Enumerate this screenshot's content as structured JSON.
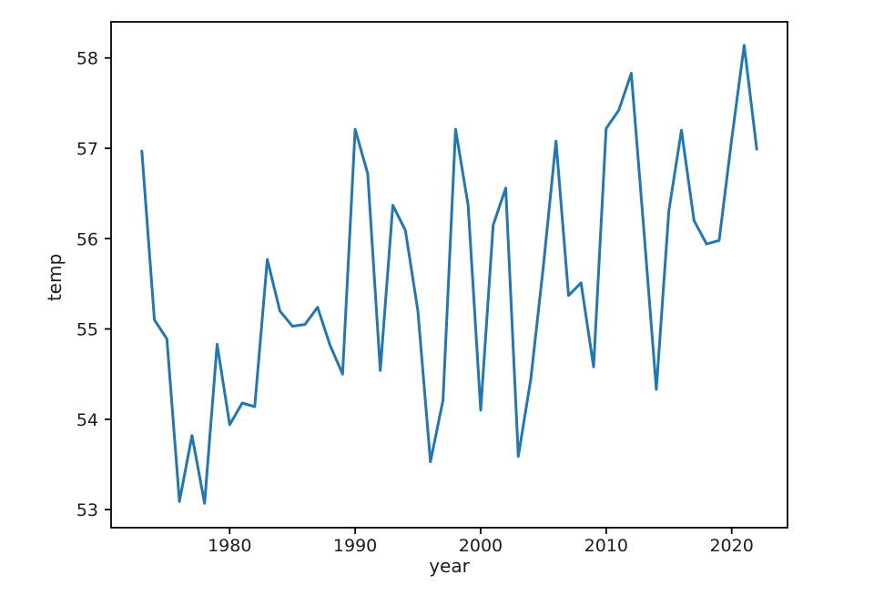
{
  "figure": {
    "background": "#ffffff",
    "spine_color": "#000000"
  },
  "chart_data": {
    "type": "line",
    "title": "",
    "xlabel": "year",
    "ylabel": "temp",
    "line_color": "#1f77b4",
    "grid": false,
    "legend": "none",
    "xlim": [
      1970.55,
      2024.45
    ],
    "ylim": [
      52.8,
      58.4
    ],
    "xticks": [
      1980,
      1990,
      2000,
      2010,
      2020
    ],
    "yticks": [
      53,
      54,
      55,
      56,
      57,
      58
    ],
    "x": [
      1973,
      1974,
      1975,
      1976,
      1977,
      1978,
      1979,
      1980,
      1981,
      1982,
      1983,
      1984,
      1985,
      1986,
      1987,
      1988,
      1989,
      1990,
      1991,
      1992,
      1993,
      1994,
      1995,
      1996,
      1997,
      1998,
      1999,
      2000,
      2001,
      2002,
      2003,
      2004,
      2005,
      2006,
      2007,
      2008,
      2009,
      2010,
      2011,
      2012,
      2013,
      2014,
      2015,
      2016,
      2017,
      2018,
      2019,
      2020,
      2021,
      2022
    ],
    "values": [
      56.97,
      55.1,
      54.89,
      53.09,
      53.82,
      53.07,
      54.83,
      53.94,
      54.18,
      54.14,
      55.77,
      55.2,
      55.03,
      55.05,
      55.24,
      54.82,
      54.5,
      57.21,
      56.72,
      54.54,
      56.37,
      56.09,
      55.2,
      53.53,
      54.21,
      57.21,
      56.37,
      54.1,
      56.15,
      56.56,
      53.59,
      54.45,
      55.7,
      57.08,
      55.37,
      55.51,
      54.58,
      57.22,
      57.42,
      57.83,
      56.1,
      54.33,
      56.31,
      57.2,
      56.2,
      55.94,
      55.98,
      57.1,
      58.14,
      56.99
    ]
  }
}
